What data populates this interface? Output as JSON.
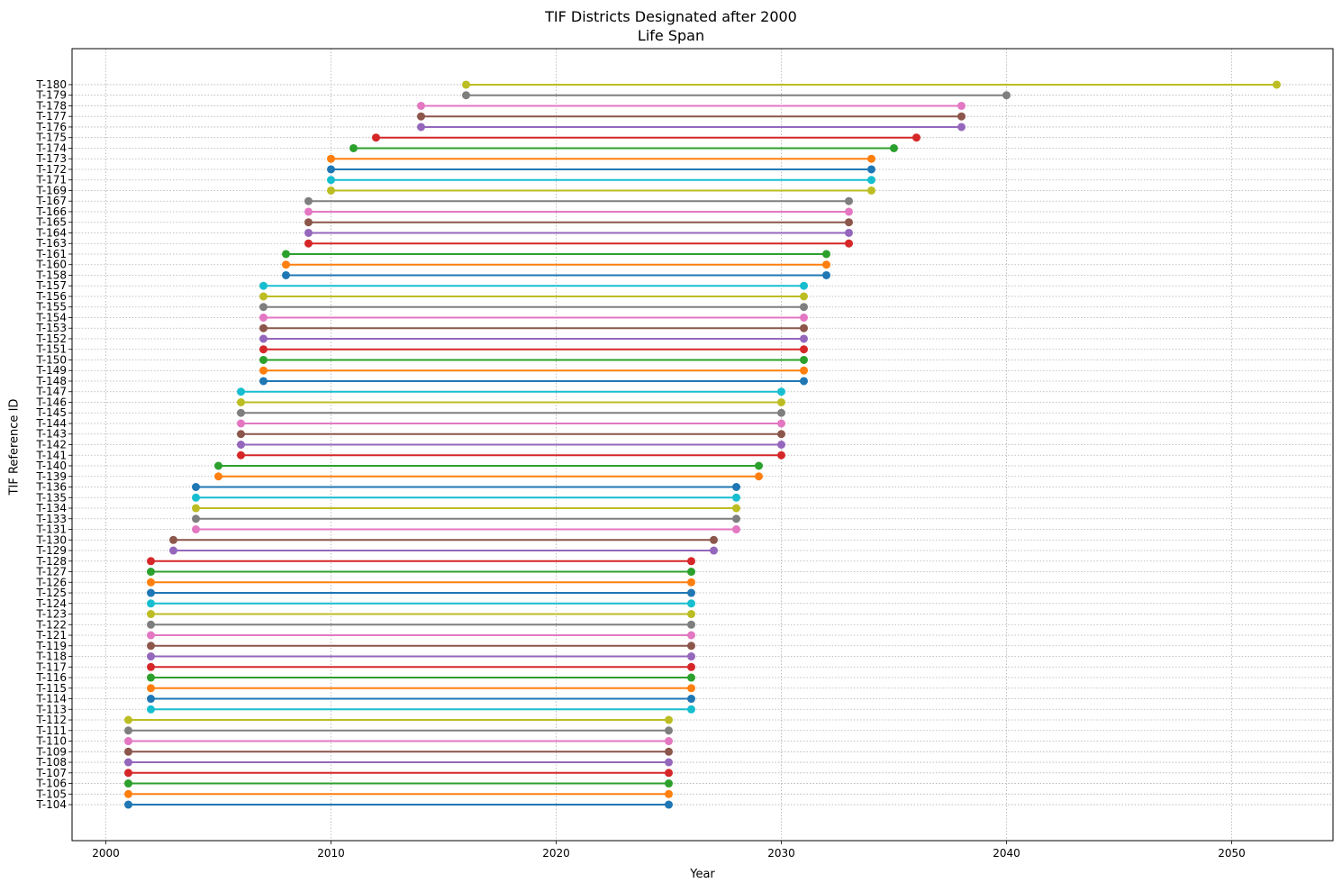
{
  "chart_data": {
    "type": "line",
    "title": "TIF Districts Designated after 2000",
    "subtitle": "Life Span",
    "xlabel": "Year",
    "ylabel": "TIF Reference ID",
    "xlim": [
      1998.5,
      2054.5
    ],
    "xticks": [
      2000,
      2010,
      2020,
      2030,
      2040,
      2050
    ],
    "grid": true,
    "palette": [
      "#1f77b4",
      "#ff7f0e",
      "#2ca02c",
      "#d62728",
      "#9467bd",
      "#8c564b",
      "#e377c2",
      "#7f7f7f",
      "#bcbd22",
      "#17becf"
    ],
    "series": [
      {
        "name": "T-104",
        "start": 2001,
        "end": 2025
      },
      {
        "name": "T-105",
        "start": 2001,
        "end": 2025
      },
      {
        "name": "T-106",
        "start": 2001,
        "end": 2025
      },
      {
        "name": "T-107",
        "start": 2001,
        "end": 2025
      },
      {
        "name": "T-108",
        "start": 2001,
        "end": 2025
      },
      {
        "name": "T-109",
        "start": 2001,
        "end": 2025
      },
      {
        "name": "T-110",
        "start": 2001,
        "end": 2025
      },
      {
        "name": "T-111",
        "start": 2001,
        "end": 2025
      },
      {
        "name": "T-112",
        "start": 2001,
        "end": 2025
      },
      {
        "name": "T-113",
        "start": 2002,
        "end": 2026
      },
      {
        "name": "T-114",
        "start": 2002,
        "end": 2026
      },
      {
        "name": "T-115",
        "start": 2002,
        "end": 2026
      },
      {
        "name": "T-116",
        "start": 2002,
        "end": 2026
      },
      {
        "name": "T-117",
        "start": 2002,
        "end": 2026
      },
      {
        "name": "T-118",
        "start": 2002,
        "end": 2026
      },
      {
        "name": "T-119",
        "start": 2002,
        "end": 2026
      },
      {
        "name": "T-121",
        "start": 2002,
        "end": 2026
      },
      {
        "name": "T-122",
        "start": 2002,
        "end": 2026
      },
      {
        "name": "T-123",
        "start": 2002,
        "end": 2026
      },
      {
        "name": "T-124",
        "start": 2002,
        "end": 2026
      },
      {
        "name": "T-125",
        "start": 2002,
        "end": 2026
      },
      {
        "name": "T-126",
        "start": 2002,
        "end": 2026
      },
      {
        "name": "T-127",
        "start": 2002,
        "end": 2026
      },
      {
        "name": "T-128",
        "start": 2002,
        "end": 2026
      },
      {
        "name": "T-129",
        "start": 2003,
        "end": 2027
      },
      {
        "name": "T-130",
        "start": 2003,
        "end": 2027
      },
      {
        "name": "T-131",
        "start": 2004,
        "end": 2028
      },
      {
        "name": "T-133",
        "start": 2004,
        "end": 2028
      },
      {
        "name": "T-134",
        "start": 2004,
        "end": 2028
      },
      {
        "name": "T-135",
        "start": 2004,
        "end": 2028
      },
      {
        "name": "T-136",
        "start": 2004,
        "end": 2028
      },
      {
        "name": "T-139",
        "start": 2005,
        "end": 2029
      },
      {
        "name": "T-140",
        "start": 2005,
        "end": 2029
      },
      {
        "name": "T-141",
        "start": 2006,
        "end": 2030
      },
      {
        "name": "T-142",
        "start": 2006,
        "end": 2030
      },
      {
        "name": "T-143",
        "start": 2006,
        "end": 2030
      },
      {
        "name": "T-144",
        "start": 2006,
        "end": 2030
      },
      {
        "name": "T-145",
        "start": 2006,
        "end": 2030
      },
      {
        "name": "T-146",
        "start": 2006,
        "end": 2030
      },
      {
        "name": "T-147",
        "start": 2006,
        "end": 2030
      },
      {
        "name": "T-148",
        "start": 2007,
        "end": 2031
      },
      {
        "name": "T-149",
        "start": 2007,
        "end": 2031
      },
      {
        "name": "T-150",
        "start": 2007,
        "end": 2031
      },
      {
        "name": "T-151",
        "start": 2007,
        "end": 2031
      },
      {
        "name": "T-152",
        "start": 2007,
        "end": 2031
      },
      {
        "name": "T-153",
        "start": 2007,
        "end": 2031
      },
      {
        "name": "T-154",
        "start": 2007,
        "end": 2031
      },
      {
        "name": "T-155",
        "start": 2007,
        "end": 2031
      },
      {
        "name": "T-156",
        "start": 2007,
        "end": 2031
      },
      {
        "name": "T-157",
        "start": 2007,
        "end": 2031
      },
      {
        "name": "T-158",
        "start": 2008,
        "end": 2032
      },
      {
        "name": "T-160",
        "start": 2008,
        "end": 2032
      },
      {
        "name": "T-161",
        "start": 2008,
        "end": 2032
      },
      {
        "name": "T-163",
        "start": 2009,
        "end": 2033
      },
      {
        "name": "T-164",
        "start": 2009,
        "end": 2033
      },
      {
        "name": "T-165",
        "start": 2009,
        "end": 2033
      },
      {
        "name": "T-166",
        "start": 2009,
        "end": 2033
      },
      {
        "name": "T-167",
        "start": 2009,
        "end": 2033
      },
      {
        "name": "T-169",
        "start": 2010,
        "end": 2034
      },
      {
        "name": "T-171",
        "start": 2010,
        "end": 2034
      },
      {
        "name": "T-172",
        "start": 2010,
        "end": 2034
      },
      {
        "name": "T-173",
        "start": 2010,
        "end": 2034
      },
      {
        "name": "T-174",
        "start": 2011,
        "end": 2035
      },
      {
        "name": "T-175",
        "start": 2012,
        "end": 2036
      },
      {
        "name": "T-176",
        "start": 2014,
        "end": 2038
      },
      {
        "name": "T-177",
        "start": 2014,
        "end": 2038
      },
      {
        "name": "T-178",
        "start": 2014,
        "end": 2038
      },
      {
        "name": "T-179",
        "start": 2016,
        "end": 2040
      },
      {
        "name": "T-180",
        "start": 2016,
        "end": 2052
      }
    ]
  }
}
